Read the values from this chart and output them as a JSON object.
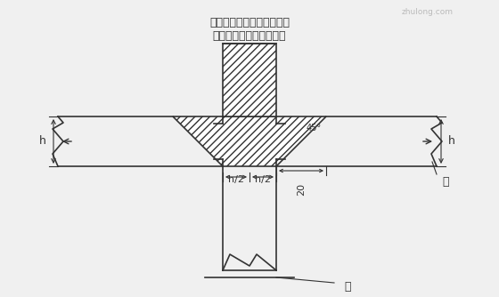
{
  "bg_color": "#f0f0f0",
  "line_color": "#333333",
  "title_text1": "棁、柱节点处不同等级混",
  "title_text2": "凝土浇筑施工缝留置示意图",
  "label_col": "柱",
  "label_beam": "梁",
  "label_h2_left": "h/2",
  "label_h2_right": "h/2",
  "label_20": "20",
  "label_45": "45°",
  "label_h_left": "h",
  "label_h_right": "h"
}
